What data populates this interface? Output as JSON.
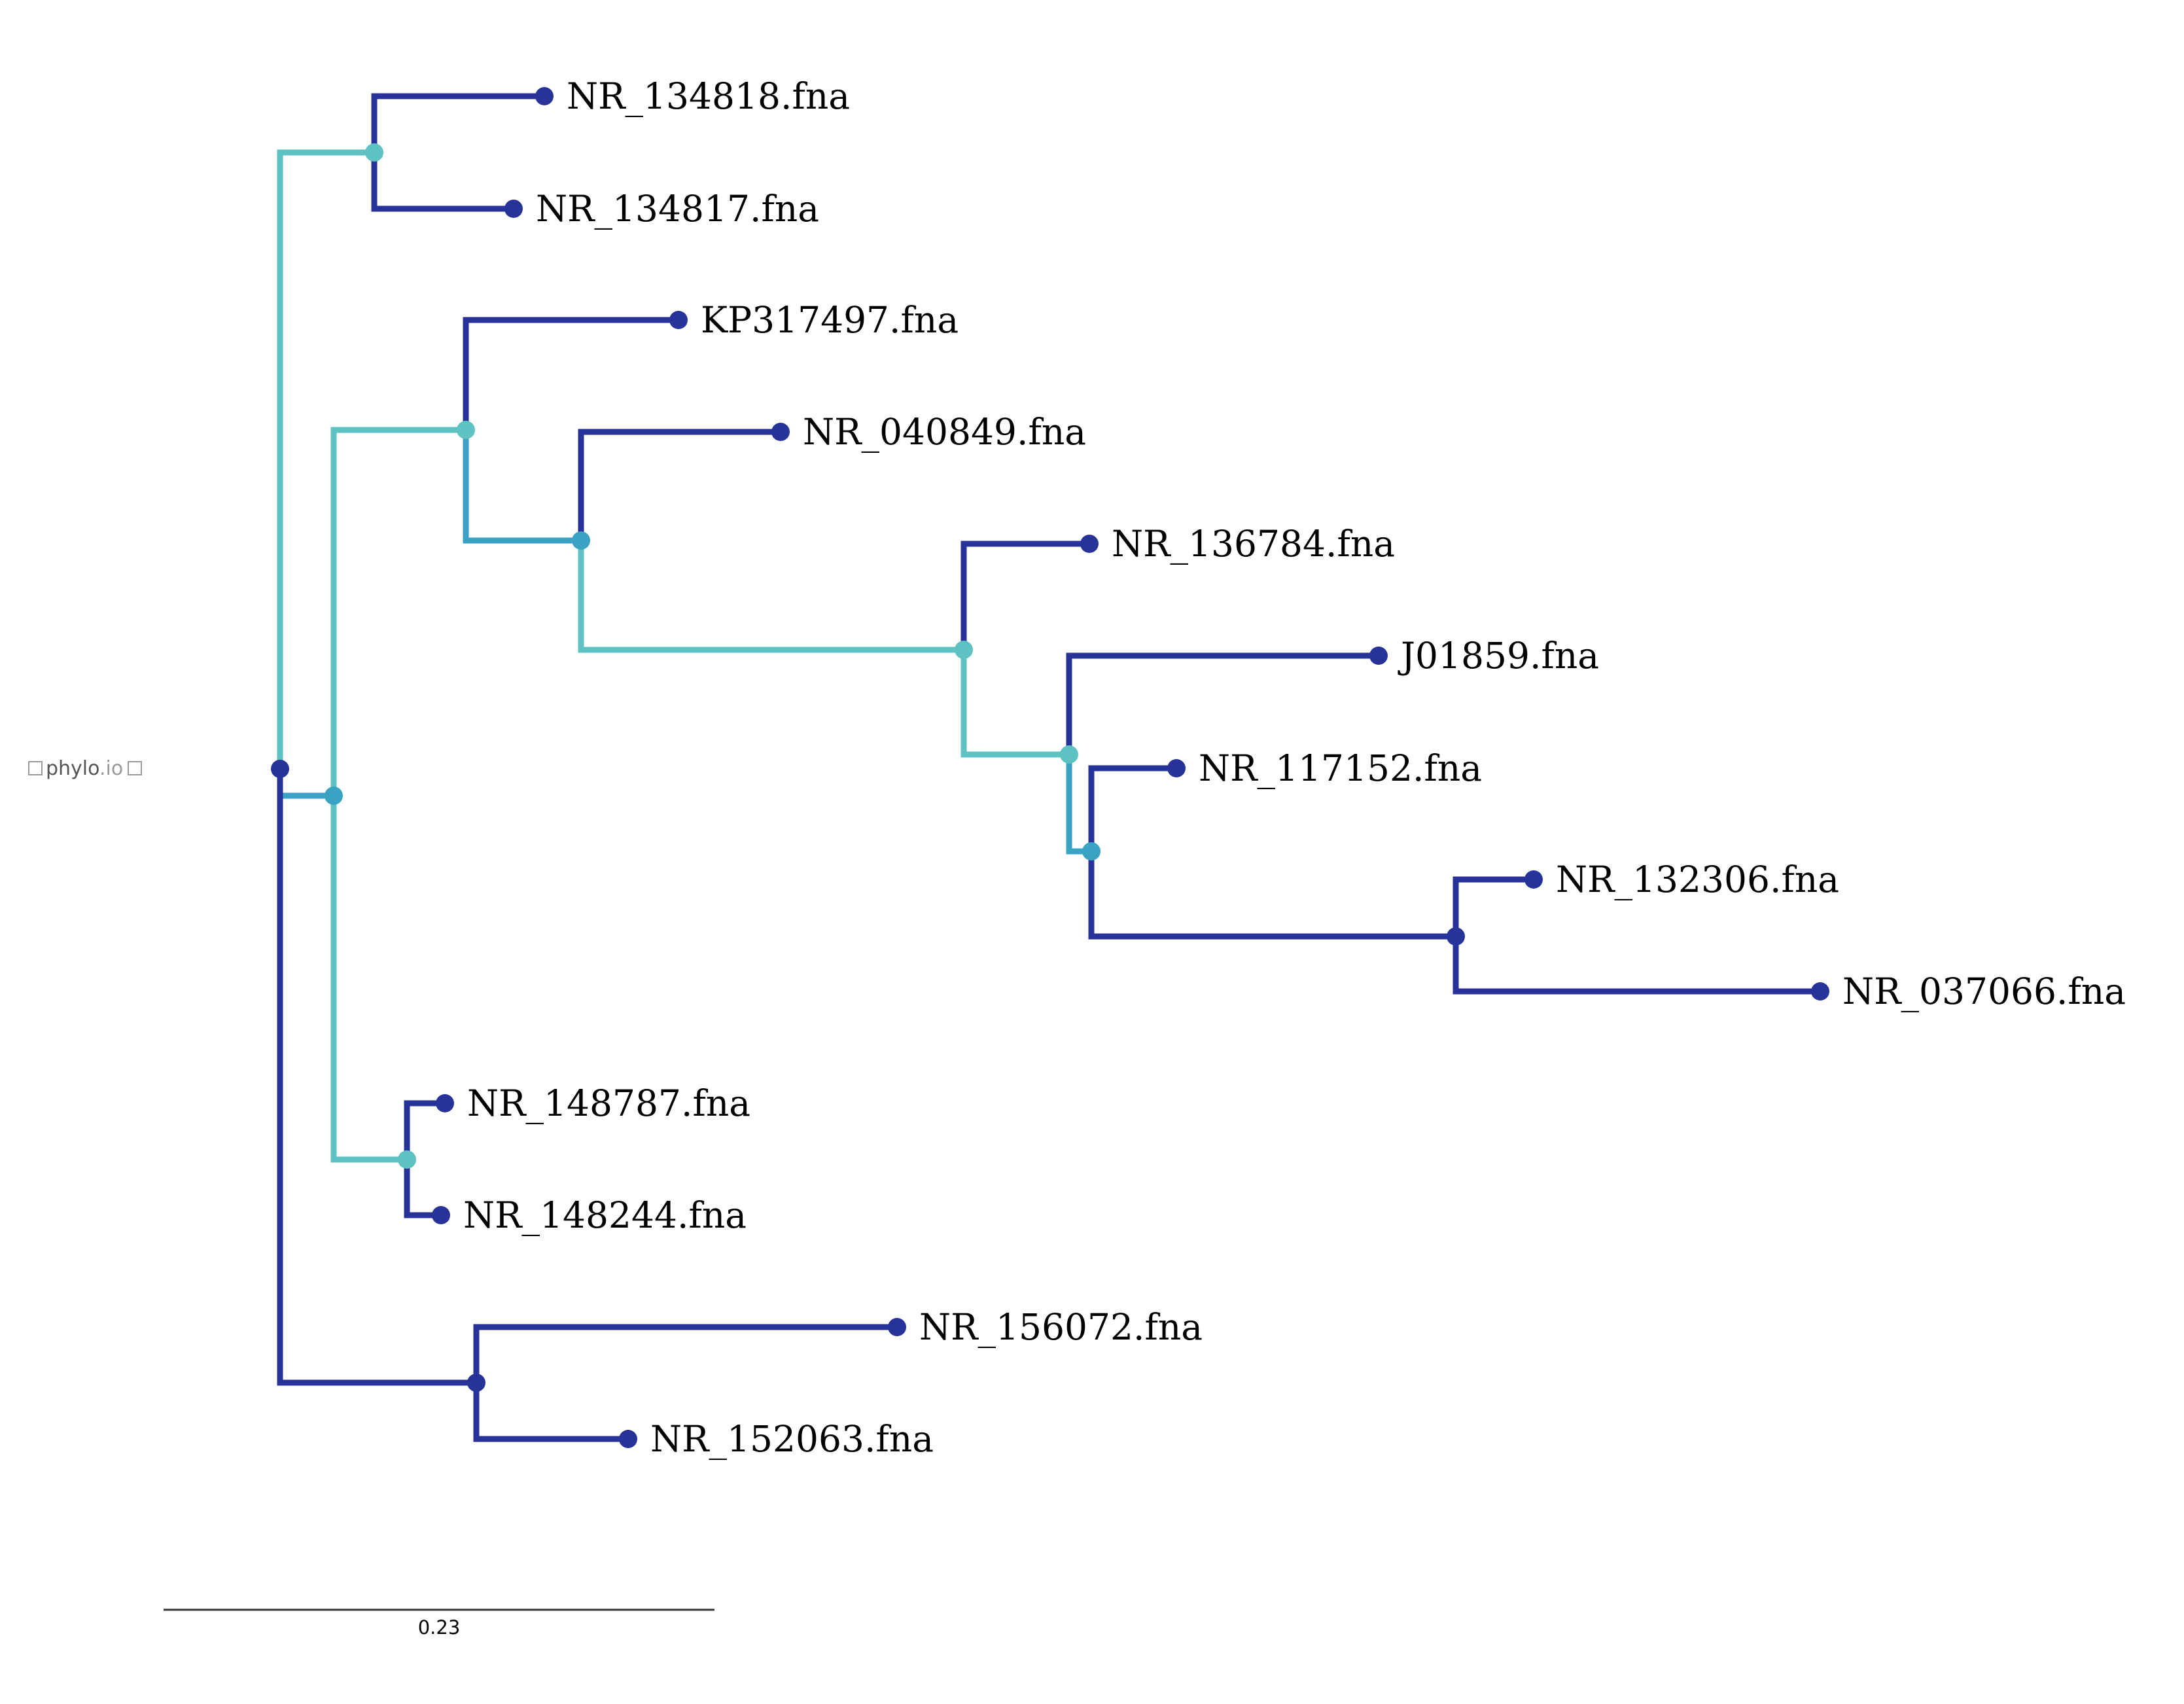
{
  "logo": {
    "main": "phylo",
    "suffix": ".io"
  },
  "scale_bar": {
    "label": "0.23"
  },
  "colors": {
    "dark": "#28339a",
    "mid": "#3aa2c2",
    "light": "#5fc2c2"
  },
  "leaves": [
    "NR_134818.fna",
    "NR_134817.fna",
    "KP317497.fna",
    "NR_040849.fna",
    "NR_136784.fna",
    "J01859.fna",
    "NR_117152.fna",
    "NR_132306.fna",
    "NR_037066.fna",
    "NR_148787.fna",
    "NR_148244.fna",
    "NR_156072.fna",
    "NR_152063.fna"
  ]
}
